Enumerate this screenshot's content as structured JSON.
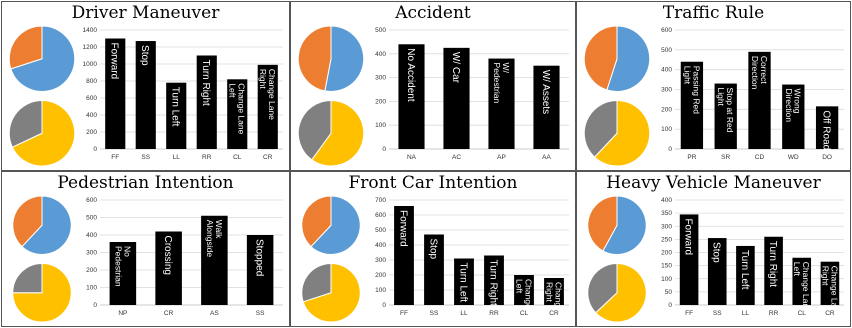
{
  "chart_data": [
    {
      "type": "bar",
      "title": "Driver Maneuver",
      "categories": [
        "FF",
        "SS",
        "LL",
        "RR",
        "CL",
        "CR"
      ],
      "bar_labels": [
        "Forward",
        "Stop",
        "Turn Left",
        "Turn Right",
        "Change Lane Left",
        "Change Lane Right"
      ],
      "values": [
        1300,
        1270,
        780,
        1100,
        820,
        990
      ],
      "ylim": [
        0,
        1400
      ],
      "yticks": [
        0,
        200,
        400,
        600,
        800,
        1000,
        1200,
        1400
      ],
      "grid": true,
      "pies": [
        {
          "values": [
            0.7,
            0.3
          ],
          "colors": [
            "#5b9bd5",
            "#ed7d31"
          ]
        },
        {
          "values": [
            0.68,
            0.32
          ],
          "colors": [
            "#ffc000",
            "#808080"
          ]
        }
      ]
    },
    {
      "type": "bar",
      "title": "Accident",
      "categories": [
        "NA",
        "AC",
        "AP",
        "AA"
      ],
      "bar_labels": [
        "No Accident",
        "W/ Car",
        "W/ Pedestrian",
        "W/ Assets"
      ],
      "values": [
        440,
        425,
        380,
        350
      ],
      "ylim": [
        0,
        500
      ],
      "yticks": [
        0,
        100,
        200,
        300,
        400,
        500
      ],
      "grid": true,
      "pies": [
        {
          "values": [
            0.53,
            0.47
          ],
          "colors": [
            "#5b9bd5",
            "#ed7d31"
          ]
        },
        {
          "values": [
            0.6,
            0.4
          ],
          "colors": [
            "#ffc000",
            "#808080"
          ]
        }
      ]
    },
    {
      "type": "bar",
      "title": "Traffic Rule",
      "categories": [
        "PR",
        "SR",
        "CD",
        "WD",
        "DO"
      ],
      "bar_labels": [
        "Passing Red Light",
        "Stop at Red Light",
        "Correct Direction",
        "Wrong Direction",
        "Off Road"
      ],
      "values": [
        440,
        330,
        490,
        325,
        215
      ],
      "ylim": [
        0,
        600
      ],
      "yticks": [
        0,
        100,
        200,
        300,
        400,
        500,
        600
      ],
      "grid": true,
      "pies": [
        {
          "values": [
            0.55,
            0.45
          ],
          "colors": [
            "#5b9bd5",
            "#ed7d31"
          ]
        },
        {
          "values": [
            0.62,
            0.38
          ],
          "colors": [
            "#ffc000",
            "#808080"
          ]
        }
      ]
    },
    {
      "type": "bar",
      "title": "Pedestrian Intention",
      "categories": [
        "NP",
        "CR",
        "AS",
        "SS"
      ],
      "bar_labels": [
        "No Pedestrian",
        "Crossing",
        "Walk Alongside",
        "Stopped"
      ],
      "values": [
        360,
        420,
        510,
        400
      ],
      "ylim": [
        0,
        600
      ],
      "yticks": [
        0,
        100,
        200,
        300,
        400,
        500,
        600
      ],
      "grid": true,
      "pies": [
        {
          "values": [
            0.62,
            0.38
          ],
          "colors": [
            "#5b9bd5",
            "#ed7d31"
          ]
        },
        {
          "values": [
            0.75,
            0.25
          ],
          "colors": [
            "#ffc000",
            "#808080"
          ]
        }
      ]
    },
    {
      "type": "bar",
      "title": "Front Car Intention",
      "categories": [
        "FF",
        "SS",
        "LL",
        "RR",
        "CL",
        "CR"
      ],
      "bar_labels": [
        "Forward",
        "Stop",
        "Turn Left",
        "Turn Right",
        "Change Lane Left",
        "Change Lane Right"
      ],
      "values": [
        660,
        470,
        310,
        330,
        200,
        180
      ],
      "ylim": [
        0,
        700
      ],
      "yticks": [
        0,
        100,
        200,
        300,
        400,
        500,
        600,
        700
      ],
      "grid": true,
      "pies": [
        {
          "values": [
            0.62,
            0.38
          ],
          "colors": [
            "#5b9bd5",
            "#ed7d31"
          ]
        },
        {
          "values": [
            0.7,
            0.3
          ],
          "colors": [
            "#ffc000",
            "#808080"
          ]
        }
      ]
    },
    {
      "type": "bar",
      "title": "Heavy Vehicle Maneuver",
      "categories": [
        "FF",
        "SS",
        "LL",
        "RR",
        "CL",
        "CR"
      ],
      "bar_labels": [
        "Forward",
        "Stop",
        "Turn Left",
        "Turn Right",
        "Change Lane Left",
        "Change Lane Right"
      ],
      "values": [
        345,
        255,
        225,
        260,
        180,
        165
      ],
      "ylim": [
        0,
        400
      ],
      "yticks": [
        0,
        50,
        100,
        150,
        200,
        250,
        300,
        350,
        400
      ],
      "grid": true,
      "pies": [
        {
          "values": [
            0.58,
            0.42
          ],
          "colors": [
            "#5b9bd5",
            "#ed7d31"
          ]
        },
        {
          "values": [
            0.63,
            0.37
          ],
          "colors": [
            "#ffc000",
            "#808080"
          ]
        }
      ]
    }
  ]
}
